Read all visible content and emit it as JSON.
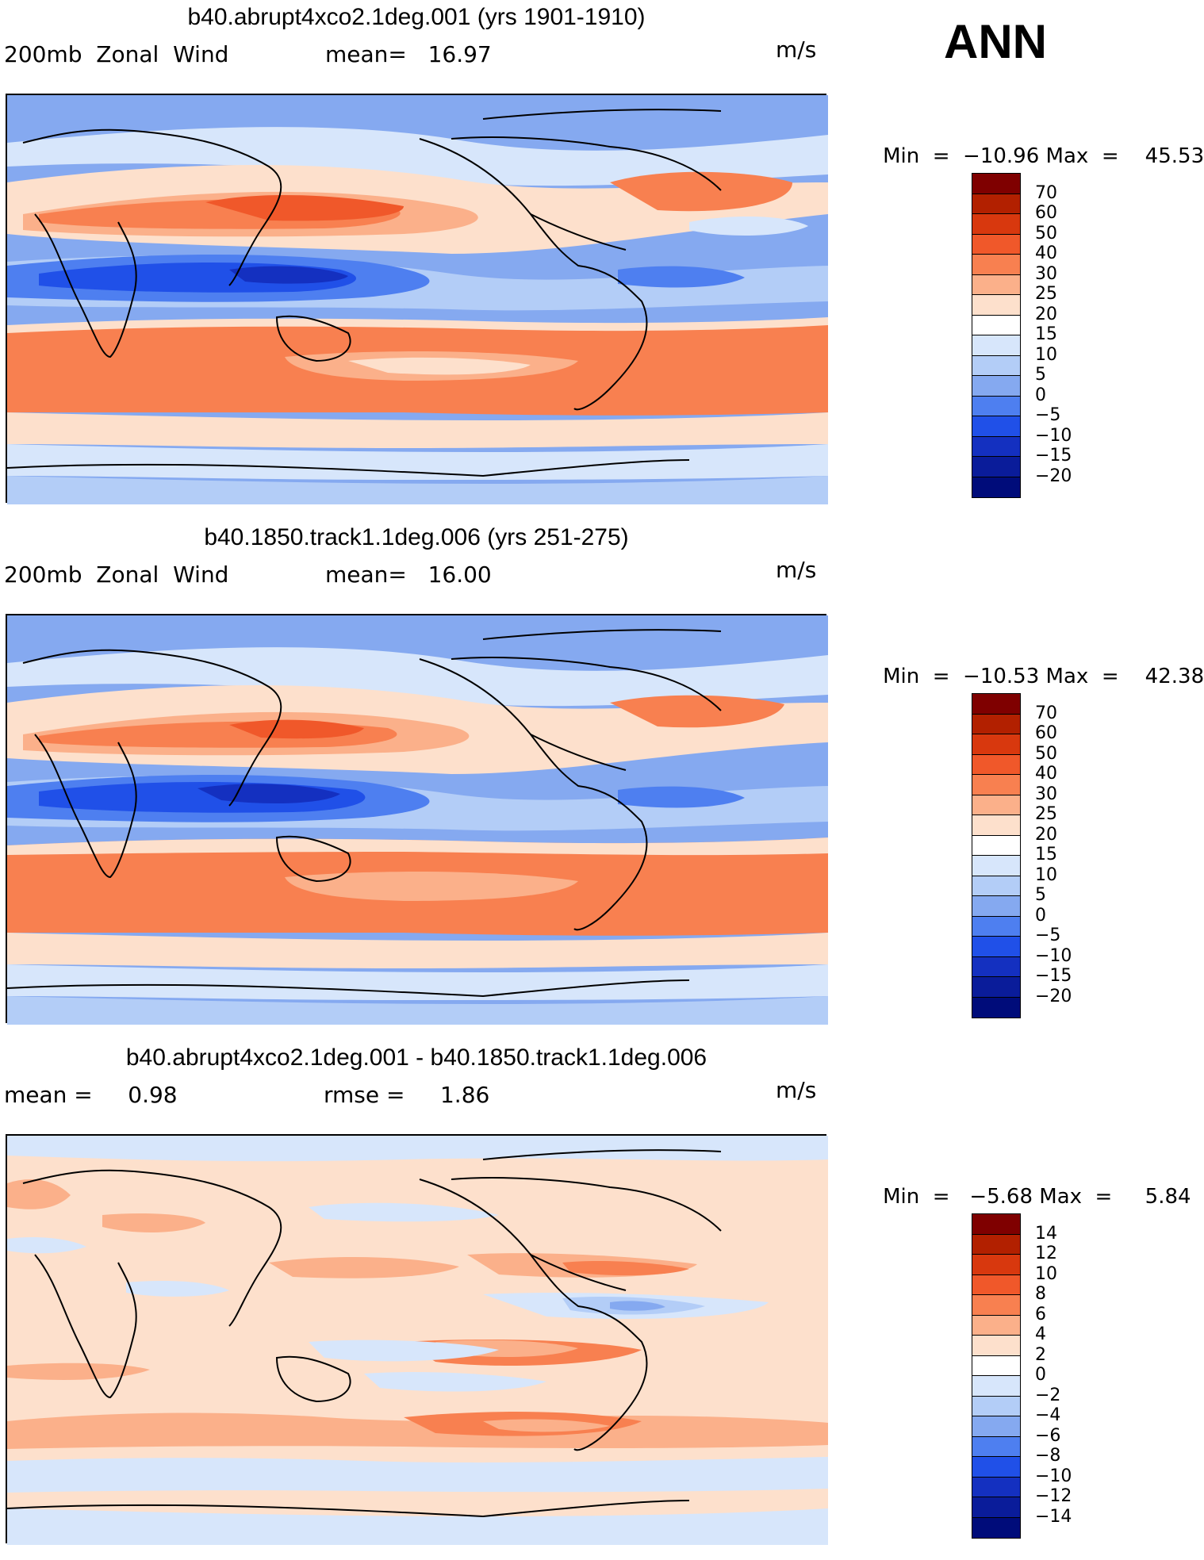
{
  "season": "ANN",
  "panels": [
    {
      "title": "b40.abrupt4xco2.1deg.001 (yrs 1901-1910)",
      "left_label": "200mb  Zonal  Wind",
      "stat1": "mean=   16.97",
      "stat2": "",
      "units": "m/s",
      "min_label": "Min",
      "min_value": "−10.96",
      "max_label": "Max",
      "max_value": "45.53",
      "legend_labels": [
        "70",
        "60",
        "50",
        "40",
        "30",
        "25",
        "20",
        "15",
        "10",
        "5",
        "0",
        "−5",
        "−10",
        "−15",
        "−20"
      ],
      "legend_colors": [
        "#7f0000",
        "#b22000",
        "#d8380e",
        "#f0582a",
        "#f88050",
        "#fbb08a",
        "#fde0cc",
        "#ffffff",
        "#d7e6fb",
        "#b3cdf7",
        "#85a9f0",
        "#4e7ff0",
        "#2050e8",
        "#1430c0",
        "#0a1c9a",
        "#000c7a"
      ]
    },
    {
      "title": "b40.1850.track1.1deg.006 (yrs 251-275)",
      "left_label": "200mb  Zonal  Wind",
      "stat1": "mean=   16.00",
      "stat2": "",
      "units": "m/s",
      "min_label": "Min",
      "min_value": "−10.53",
      "max_label": "Max",
      "max_value": "42.38",
      "legend_labels": [
        "70",
        "60",
        "50",
        "40",
        "30",
        "25",
        "20",
        "15",
        "10",
        "5",
        "0",
        "−5",
        "−10",
        "−15",
        "−20"
      ],
      "legend_colors": [
        "#7f0000",
        "#b22000",
        "#d8380e",
        "#f0582a",
        "#f88050",
        "#fbb08a",
        "#fde0cc",
        "#ffffff",
        "#d7e6fb",
        "#b3cdf7",
        "#85a9f0",
        "#4e7ff0",
        "#2050e8",
        "#1430c0",
        "#0a1c9a",
        "#000c7a"
      ]
    },
    {
      "title": "b40.abrupt4xco2.1deg.001 - b40.1850.track1.1deg.006",
      "left_label": "mean =     0.98",
      "stat1": "rmse =     1.86",
      "stat2": "",
      "units": "m/s",
      "min_label": "Min",
      "min_value": "−5.68",
      "max_label": "Max",
      "max_value": "5.84",
      "legend_labels": [
        "14",
        "12",
        "10",
        "8",
        "6",
        "4",
        "2",
        "0",
        "−2",
        "−4",
        "−6",
        "−8",
        "−10",
        "−12",
        "−14"
      ],
      "legend_colors": [
        "#7f0000",
        "#b22000",
        "#d8380e",
        "#f0582a",
        "#f88050",
        "#fbb08a",
        "#fde0cc",
        "#ffffff",
        "#d7e6fb",
        "#b3cdf7",
        "#85a9f0",
        "#4e7ff0",
        "#2050e8",
        "#1430c0",
        "#0a1c9a",
        "#000c7a"
      ]
    }
  ]
}
